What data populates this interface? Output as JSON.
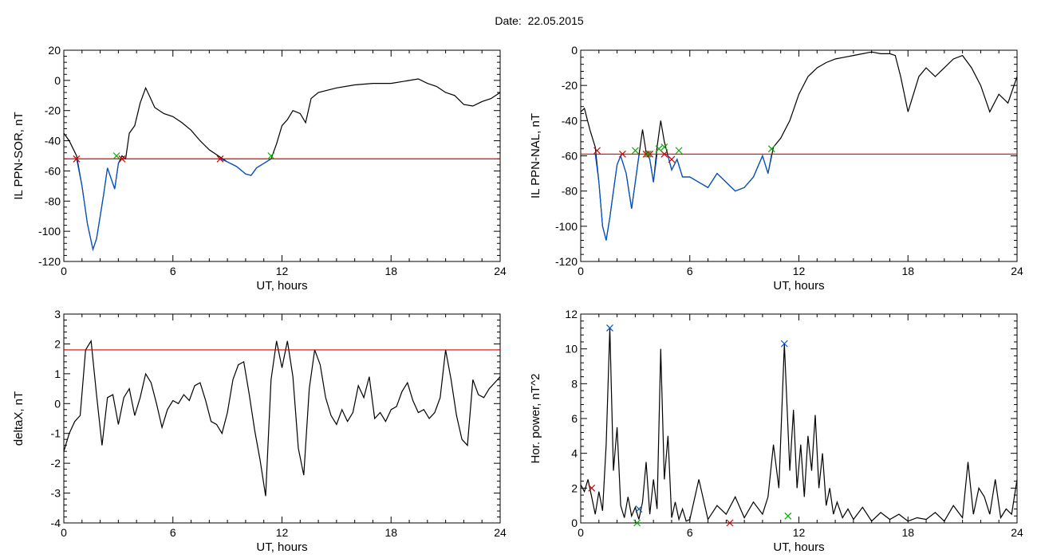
{
  "title": "Date:  22.05.2015",
  "chart_data": [
    {
      "id": "sor",
      "type": "line",
      "ylabel": "IL PPN-SOR, nT",
      "xlabel": "UT, hours",
      "xlim": [
        0,
        24
      ],
      "ylim": [
        -120,
        20
      ],
      "xticks": [
        0,
        6,
        12,
        18,
        24
      ],
      "yticks": [
        -120,
        -100,
        -80,
        -60,
        -40,
        -20,
        0,
        20
      ],
      "threshold": -52,
      "grid": false,
      "series": [
        {
          "color": "#000000",
          "x": [
            0,
            0.3,
            0.7,
            1.0,
            1.3,
            1.6,
            1.8,
            2.0,
            2.2,
            2.4,
            2.6,
            2.8,
            3.0,
            3.2,
            3.4,
            3.6,
            3.9,
            4.2,
            4.5,
            4.7,
            5.0,
            5.5,
            6.0,
            6.5,
            7.0,
            7.5,
            8.0,
            8.5,
            9.0,
            9.5,
            10.0,
            10.3,
            10.6,
            11.0,
            11.4,
            11.7,
            12.0,
            12.3,
            12.6,
            13.0,
            13.3,
            13.6,
            14.0,
            15.0,
            16.0,
            17.0,
            18.0,
            19.0,
            19.5,
            20.0,
            20.5,
            21.0,
            21.5,
            22.0,
            22.5,
            23.0,
            23.5,
            24.0
          ],
          "y": [
            -35,
            -40,
            -50,
            -70,
            -95,
            -112,
            -105,
            -90,
            -75,
            -58,
            -65,
            -72,
            -55,
            -50,
            -52,
            -35,
            -30,
            -15,
            -5,
            -10,
            -18,
            -22,
            -24,
            -28,
            -33,
            -40,
            -46,
            -50,
            -54,
            -57,
            -62,
            -63,
            -58,
            -55,
            -52,
            -42,
            -30,
            -26,
            -20,
            -22,
            -28,
            -12,
            -8,
            -5,
            -3,
            -2,
            -2,
            0,
            1,
            -2,
            -4,
            -8,
            -10,
            -16,
            -17,
            -14,
            -12,
            -8
          ]
        },
        {
          "color": "#0055cc",
          "x": [
            0.7,
            1.0,
            1.3,
            1.6,
            1.8,
            2.0,
            2.2,
            2.4,
            2.6,
            2.8,
            3.0,
            3.2
          ],
          "y": [
            -52,
            -70,
            -95,
            -112,
            -105,
            -90,
            -75,
            -58,
            -65,
            -72,
            -55,
            -52
          ]
        },
        {
          "color": "#0055cc",
          "x": [
            8.6,
            9.0,
            9.5,
            10.0,
            10.3,
            10.6,
            11.0,
            11.4
          ],
          "y": [
            -52,
            -54,
            -57,
            -62,
            -63,
            -58,
            -55,
            -52
          ]
        }
      ],
      "markers": [
        {
          "color": "#cc0000",
          "x": [
            0.7,
            3.2,
            8.6
          ],
          "y": [
            -52,
            -52,
            -52
          ]
        },
        {
          "color": "#00aa00",
          "x": [
            2.9,
            11.4
          ],
          "y": [
            -50,
            -50
          ]
        }
      ]
    },
    {
      "id": "nal",
      "type": "line",
      "ylabel": "IL PPN-NAL, nT",
      "xlabel": "UT, hours",
      "xlim": [
        0,
        24
      ],
      "ylim": [
        -120,
        0
      ],
      "xticks": [
        0,
        6,
        12,
        18,
        24
      ],
      "yticks": [
        -120,
        -100,
        -80,
        -60,
        -40,
        -20,
        0
      ],
      "threshold": -59,
      "grid": false,
      "series": [
        {
          "color": "#000000",
          "x": [
            0,
            0.2,
            0.5,
            0.8,
            1.0,
            1.2,
            1.4,
            1.6,
            1.8,
            2.0,
            2.2,
            2.5,
            2.8,
            3.0,
            3.2,
            3.4,
            3.6,
            3.8,
            4.0,
            4.2,
            4.4,
            4.6,
            4.8,
            5.0,
            5.3,
            5.6,
            6.0,
            6.5,
            7.0,
            7.5,
            8.0,
            8.5,
            9.0,
            9.5,
            10.0,
            10.3,
            10.6,
            11.0,
            11.5,
            12.0,
            12.5,
            13.0,
            13.5,
            14.0,
            14.5,
            15.0,
            15.5,
            16.0,
            16.5,
            17.0,
            17.3,
            17.6,
            18.0,
            18.3,
            18.6,
            19.0,
            19.5,
            20.0,
            20.5,
            21.0,
            21.5,
            22.0,
            22.5,
            23.0,
            23.5,
            24.0
          ],
          "y": [
            -35,
            -33,
            -45,
            -55,
            -75,
            -100,
            -108,
            -95,
            -80,
            -65,
            -60,
            -70,
            -90,
            -75,
            -60,
            -45,
            -58,
            -62,
            -75,
            -55,
            -40,
            -52,
            -60,
            -68,
            -62,
            -72,
            -72,
            -75,
            -78,
            -70,
            -75,
            -80,
            -78,
            -72,
            -60,
            -70,
            -55,
            -50,
            -40,
            -25,
            -15,
            -10,
            -7,
            -5,
            -4,
            -3,
            -2,
            -1,
            -2,
            -2,
            -3,
            -15,
            -35,
            -25,
            -15,
            -10,
            -15,
            -10,
            -5,
            -3,
            -10,
            -20,
            -35,
            -25,
            -30,
            -15
          ]
        },
        {
          "color": "#0055cc",
          "x": [
            0.8,
            1.0,
            1.2,
            1.4,
            1.6,
            1.8,
            2.0,
            2.2,
            2.5,
            2.8,
            3.0,
            3.2
          ],
          "y": [
            -59,
            -75,
            -100,
            -108,
            -95,
            -80,
            -65,
            -60,
            -70,
            -90,
            -75,
            -60
          ]
        },
        {
          "color": "#0055cc",
          "x": [
            3.7,
            3.8,
            4.0,
            4.2
          ],
          "y": [
            -59,
            -62,
            -75,
            -59
          ]
        },
        {
          "color": "#0055cc",
          "x": [
            4.7,
            4.8,
            5.0,
            5.3,
            5.6,
            6.0,
            6.5,
            7.0,
            7.5,
            8.0,
            8.5,
            9.0,
            9.5,
            10.0,
            10.3,
            10.5
          ],
          "y": [
            -59,
            -60,
            -68,
            -62,
            -72,
            -72,
            -75,
            -78,
            -70,
            -75,
            -80,
            -78,
            -72,
            -60,
            -70,
            -59
          ]
        }
      ],
      "markers": [
        {
          "color": "#cc0000",
          "x": [
            0.9,
            2.3,
            3.6,
            3.8,
            4.6,
            5.0
          ],
          "y": [
            -57,
            -59,
            -59,
            -59,
            -59,
            -62
          ]
        },
        {
          "color": "#00aa00",
          "x": [
            3.0,
            3.7,
            4.3,
            4.6,
            5.4,
            10.5
          ],
          "y": [
            -57,
            -59,
            -56,
            -55,
            -57,
            -56
          ]
        }
      ]
    },
    {
      "id": "deltax",
      "type": "line",
      "ylabel": "deltaX, nT",
      "xlabel": "UT, hours",
      "xlim": [
        0,
        24
      ],
      "ylim": [
        -4,
        3
      ],
      "xticks": [
        0,
        6,
        12,
        18,
        24
      ],
      "yticks": [
        -4,
        -3,
        -2,
        -1,
        0,
        1,
        2,
        3
      ],
      "threshold": 1.8,
      "grid": false,
      "series": [
        {
          "color": "#000000",
          "x": [
            0,
            0.3,
            0.6,
            0.9,
            1.2,
            1.5,
            1.8,
            2.1,
            2.4,
            2.7,
            3.0,
            3.3,
            3.6,
            3.9,
            4.2,
            4.5,
            4.8,
            5.1,
            5.4,
            5.7,
            6.0,
            6.3,
            6.6,
            6.9,
            7.2,
            7.5,
            7.8,
            8.1,
            8.4,
            8.7,
            9.0,
            9.3,
            9.6,
            9.9,
            10.2,
            10.5,
            10.8,
            11.1,
            11.4,
            11.7,
            12.0,
            12.3,
            12.6,
            12.9,
            13.2,
            13.5,
            13.8,
            14.1,
            14.4,
            14.7,
            15.0,
            15.3,
            15.6,
            15.9,
            16.2,
            16.5,
            16.8,
            17.1,
            17.4,
            17.7,
            18.0,
            18.3,
            18.6,
            18.9,
            19.2,
            19.5,
            19.8,
            20.1,
            20.4,
            20.7,
            21.0,
            21.3,
            21.6,
            21.9,
            22.2,
            22.5,
            22.8,
            23.1,
            23.4,
            23.7,
            24.0
          ],
          "y": [
            -1.6,
            -1.0,
            -0.6,
            -0.4,
            1.8,
            2.1,
            0.3,
            -1.4,
            0.2,
            0.3,
            -0.7,
            0.2,
            0.5,
            -0.4,
            0.2,
            1.0,
            0.7,
            0.0,
            -0.8,
            -0.2,
            0.1,
            0.0,
            0.3,
            0.1,
            0.6,
            0.7,
            0.1,
            -0.6,
            -0.7,
            -1.0,
            -0.3,
            0.8,
            1.3,
            1.4,
            0.3,
            -0.9,
            -1.9,
            -3.1,
            0.8,
            2.1,
            1.2,
            2.1,
            0.9,
            -1.5,
            -2.4,
            0.5,
            1.8,
            1.3,
            0.2,
            -0.4,
            -0.7,
            -0.2,
            -0.6,
            -0.3,
            0.6,
            0.2,
            0.9,
            -0.5,
            -0.3,
            -0.6,
            -0.2,
            -0.1,
            0.4,
            0.7,
            0.1,
            -0.3,
            -0.2,
            -0.5,
            -0.3,
            0.2,
            1.8,
            0.8,
            -0.4,
            -1.2,
            -1.4,
            0.8,
            0.3,
            0.2,
            0.5,
            0.7,
            0.9
          ]
        }
      ],
      "markers": []
    },
    {
      "id": "power",
      "type": "line",
      "ylabel": "Hor. power, nT^2",
      "xlabel": "UT, hours",
      "xlim": [
        0,
        24
      ],
      "ylim": [
        0,
        12
      ],
      "xticks": [
        0,
        6,
        12,
        18,
        24
      ],
      "yticks": [
        0,
        2,
        4,
        6,
        8,
        10,
        12
      ],
      "threshold": null,
      "grid": false,
      "series": [
        {
          "color": "#000000",
          "x": [
            0,
            0.2,
            0.4,
            0.6,
            0.8,
            1.0,
            1.2,
            1.4,
            1.6,
            1.8,
            2.0,
            2.2,
            2.4,
            2.6,
            2.8,
            3.0,
            3.2,
            3.4,
            3.6,
            3.8,
            4.0,
            4.2,
            4.4,
            4.6,
            4.8,
            5.0,
            5.2,
            5.4,
            5.6,
            5.8,
            6.0,
            6.5,
            7.0,
            7.5,
            8.0,
            8.5,
            9.0,
            9.5,
            10.0,
            10.3,
            10.6,
            10.9,
            11.2,
            11.5,
            11.7,
            11.9,
            12.1,
            12.3,
            12.5,
            12.7,
            12.9,
            13.1,
            13.3,
            13.5,
            13.7,
            13.9,
            14.1,
            14.4,
            14.7,
            15.0,
            15.5,
            16.0,
            16.5,
            17.0,
            17.5,
            18.0,
            18.5,
            19.0,
            19.5,
            20.0,
            20.5,
            21.0,
            21.3,
            21.6,
            21.9,
            22.2,
            22.5,
            22.8,
            23.1,
            23.4,
            23.7,
            24.0
          ],
          "y": [
            2.2,
            1.8,
            2.5,
            1.5,
            0.5,
            1.8,
            0.7,
            4.5,
            11.2,
            3.0,
            5.5,
            1.0,
            0.3,
            1.5,
            0.4,
            0.9,
            0.2,
            1.2,
            3.5,
            0.5,
            2.5,
            0.8,
            10.0,
            2.5,
            5.0,
            0.3,
            1.2,
            0.2,
            0.8,
            0.1,
            0.2,
            2.5,
            0.2,
            1.0,
            0.5,
            1.5,
            0.3,
            1.2,
            0.5,
            1.5,
            4.5,
            2.0,
            10.3,
            3.0,
            6.5,
            2.0,
            4.5,
            1.5,
            5.0,
            3.0,
            6.2,
            2.0,
            4.0,
            1.0,
            2.0,
            0.5,
            1.2,
            0.3,
            0.8,
            0.2,
            0.9,
            0.1,
            0.6,
            0.2,
            0.5,
            0.1,
            0.3,
            0.2,
            0.6,
            0.1,
            1.0,
            0.3,
            3.5,
            0.5,
            2.0,
            1.5,
            0.5,
            2.5,
            0.3,
            0.8,
            0.5,
            2.5
          ]
        }
      ],
      "markers": [
        {
          "color": "#0055cc",
          "x": [
            1.6,
            11.2,
            3.2
          ],
          "y": [
            11.2,
            10.3,
            0.8
          ]
        },
        {
          "color": "#cc0000",
          "x": [
            0.6,
            8.2
          ],
          "y": [
            2.0,
            0.0
          ]
        },
        {
          "color": "#00aa00",
          "x": [
            3.1,
            11.4
          ],
          "y": [
            0.0,
            0.4
          ]
        }
      ]
    }
  ]
}
